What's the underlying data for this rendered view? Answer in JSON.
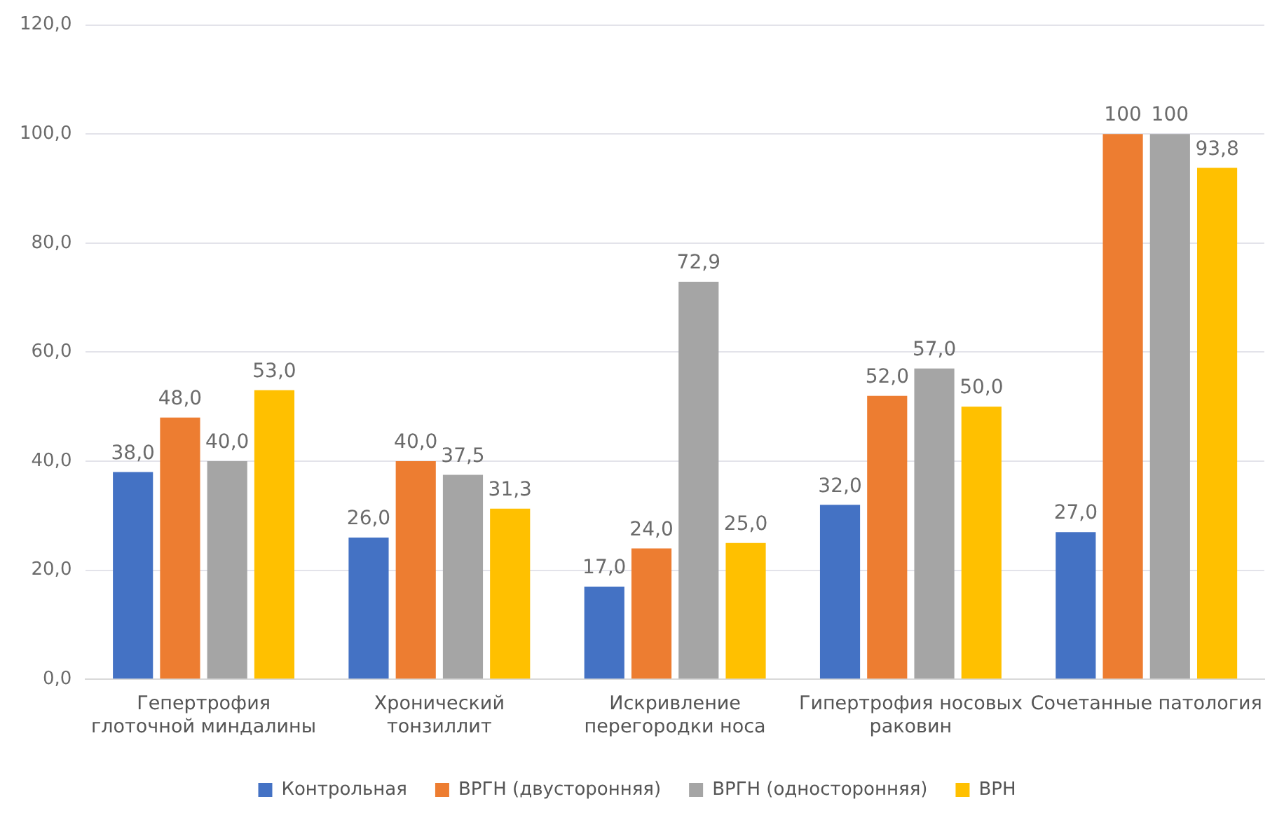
{
  "chart_data": {
    "type": "bar",
    "categories": [
      "Гепертрофия глоточной миндалины",
      "Хронический тонзиллит",
      "Искривление перегородки носа",
      "Гипертрофия носовых раковин",
      "Сочетанные патология"
    ],
    "series": [
      {
        "name": "Контрольная",
        "color": "#4472c4",
        "values": [
          38.0,
          26.0,
          17.0,
          32.0,
          27.0
        ],
        "value_labels": [
          "38,0",
          "26,0",
          "17,0",
          "32,0",
          "27,0"
        ]
      },
      {
        "name": "ВРГН (двусторонняя)",
        "color": "#ed7d31",
        "values": [
          48.0,
          40.0,
          24.0,
          52.0,
          100
        ],
        "value_labels": [
          "48,0",
          "40,0",
          "24,0",
          "52,0",
          "100"
        ]
      },
      {
        "name": "ВРГН (односторонняя)",
        "color": "#a5a5a5",
        "values": [
          40.0,
          37.5,
          72.9,
          57.0,
          100
        ],
        "value_labels": [
          "40,0",
          "37,5",
          "72,9",
          "57,0",
          "100"
        ]
      },
      {
        "name": "ВРН",
        "color": "#ffc000",
        "values": [
          53.0,
          31.3,
          25.0,
          50.0,
          93.8
        ],
        "value_labels": [
          "53,0",
          "31,3",
          "25,0",
          "50,0",
          "93,8"
        ]
      }
    ],
    "ylim": [
      0,
      120
    ],
    "yticks": [
      {
        "value": 0,
        "label": "0,0"
      },
      {
        "value": 20,
        "label": "20,0"
      },
      {
        "value": 40,
        "label": "40,0"
      },
      {
        "value": 60,
        "label": "60,0"
      },
      {
        "value": 80,
        "label": "80,0"
      },
      {
        "value": 100,
        "label": "100,0"
      },
      {
        "value": 120,
        "label": "120,0"
      }
    ],
    "grid": "y",
    "legend": "bottom"
  }
}
